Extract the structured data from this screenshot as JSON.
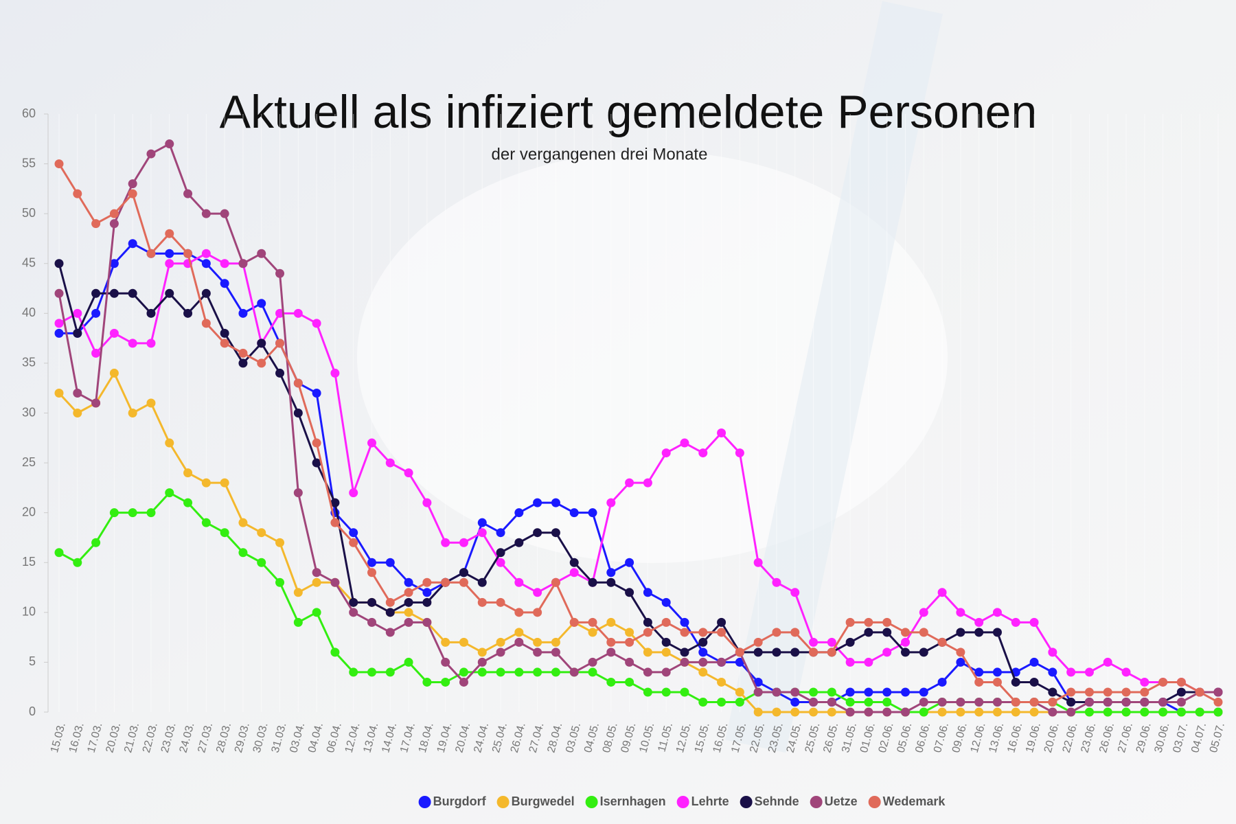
{
  "chart_data": {
    "type": "line",
    "title": "Aktuell als infiziert gemeldete Personen",
    "subtitle": "der vergangenen drei Monate",
    "categories": [
      "15.03.",
      "16.03.",
      "17.03.",
      "20.03.",
      "21.03.",
      "22.03.",
      "23.03.",
      "24.03.",
      "27.03.",
      "28.03.",
      "29.03.",
      "30.03.",
      "31.03.",
      "03.04.",
      "04.04.",
      "06.04.",
      "12.04.",
      "13.04.",
      "14.04.",
      "17.04.",
      "18.04.",
      "19.04.",
      "20.04.",
      "24.04.",
      "25.04.",
      "26.04.",
      "27.04.",
      "28.04.",
      "03.05.",
      "04.05.",
      "08.05.",
      "09.05.",
      "10.05.",
      "11.05.",
      "12.05.",
      "15.05.",
      "16.05.",
      "17.05.",
      "22.05.",
      "23.05.",
      "24.05.",
      "25.05.",
      "26.05.",
      "31.05.",
      "01.06.",
      "02.06.",
      "05.06.",
      "06.06.",
      "07.06.",
      "09.06.",
      "12.06.",
      "13.06.",
      "16.06.",
      "19.06.",
      "20.06.",
      "22.06.",
      "23.06.",
      "26.06.",
      "27.06.",
      "29.06.",
      "30.06.",
      "03.07.",
      "04.07.",
      "05.07."
    ],
    "series": [
      {
        "name": "Burgdorf",
        "color": "#1a1aff",
        "values": [
          38,
          38,
          40,
          45,
          47,
          46,
          46,
          46,
          45,
          43,
          40,
          41,
          37,
          33,
          32,
          20,
          18,
          15,
          15,
          13,
          12,
          13,
          14,
          19,
          18,
          20,
          21,
          21,
          20,
          20,
          14,
          15,
          12,
          11,
          9,
          6,
          5,
          5,
          3,
          2,
          1,
          1,
          1,
          2,
          2,
          2,
          2,
          2,
          3,
          5,
          4,
          4,
          4,
          5,
          4,
          1,
          1,
          1,
          1,
          1,
          1,
          0,
          0,
          0
        ]
      },
      {
        "name": "Burgwedel",
        "color": "#f4b82c",
        "values": [
          32,
          30,
          31,
          34,
          30,
          31,
          27,
          24,
          23,
          23,
          19,
          18,
          17,
          12,
          13,
          13,
          11,
          11,
          10,
          10,
          9,
          7,
          7,
          6,
          7,
          8,
          7,
          7,
          9,
          8,
          9,
          8,
          6,
          6,
          5,
          4,
          3,
          2,
          0,
          0,
          0,
          0,
          0,
          0,
          0,
          0,
          0,
          0,
          0,
          0,
          0,
          0,
          0,
          0,
          0,
          0,
          0,
          0,
          0,
          0,
          0,
          0,
          0,
          0
        ]
      },
      {
        "name": "Isernhagen",
        "color": "#33ee11",
        "values": [
          16,
          15,
          17,
          20,
          20,
          20,
          22,
          21,
          19,
          18,
          16,
          15,
          13,
          9,
          10,
          6,
          4,
          4,
          4,
          5,
          3,
          3,
          4,
          4,
          4,
          4,
          4,
          4,
          4,
          4,
          3,
          3,
          2,
          2,
          2,
          1,
          1,
          1,
          2,
          2,
          2,
          2,
          2,
          1,
          1,
          1,
          0,
          0,
          1,
          1,
          1,
          1,
          1,
          1,
          1,
          0,
          0,
          0,
          0,
          0,
          0,
          0,
          0,
          0
        ]
      },
      {
        "name": "Lehrte",
        "color": "#ff22ff",
        "values": [
          39,
          40,
          36,
          38,
          37,
          37,
          45,
          45,
          46,
          45,
          45,
          37,
          40,
          40,
          39,
          34,
          22,
          27,
          25,
          24,
          21,
          17,
          17,
          18,
          15,
          13,
          12,
          13,
          14,
          13,
          21,
          23,
          23,
          26,
          27,
          26,
          28,
          26,
          15,
          13,
          12,
          7,
          7,
          5,
          5,
          6,
          7,
          10,
          12,
          10,
          9,
          10,
          9,
          9,
          6,
          4,
          4,
          5,
          4,
          3,
          3,
          3,
          2,
          2
        ]
      },
      {
        "name": "Sehnde",
        "color": "#1a1048",
        "values": [
          45,
          38,
          42,
          42,
          42,
          40,
          42,
          40,
          42,
          38,
          35,
          37,
          34,
          30,
          25,
          21,
          11,
          11,
          10,
          11,
          11,
          13,
          14,
          13,
          16,
          17,
          18,
          18,
          15,
          13,
          13,
          12,
          9,
          7,
          6,
          7,
          9,
          6,
          6,
          6,
          6,
          6,
          6,
          7,
          8,
          8,
          6,
          6,
          7,
          8,
          8,
          8,
          3,
          3,
          2,
          1,
          1,
          1,
          1,
          1,
          1,
          2,
          2,
          2
        ]
      },
      {
        "name": "Uetze",
        "color": "#a0457a",
        "values": [
          42,
          32,
          31,
          49,
          53,
          56,
          57,
          52,
          50,
          50,
          45,
          46,
          44,
          22,
          14,
          13,
          10,
          9,
          8,
          9,
          9,
          5,
          3,
          5,
          6,
          7,
          6,
          6,
          4,
          5,
          6,
          5,
          4,
          4,
          5,
          5,
          5,
          6,
          2,
          2,
          2,
          1,
          1,
          0,
          0,
          0,
          0,
          1,
          1,
          1,
          1,
          1,
          1,
          1,
          0,
          0,
          1,
          1,
          1,
          1,
          1,
          1,
          2,
          2
        ]
      },
      {
        "name": "Wedemark",
        "color": "#e06a5a",
        "values": [
          55,
          52,
          49,
          50,
          52,
          46,
          48,
          46,
          39,
          37,
          36,
          35,
          37,
          33,
          27,
          19,
          17,
          14,
          11,
          12,
          13,
          13,
          13,
          11,
          11,
          10,
          10,
          13,
          9,
          9,
          7,
          7,
          8,
          9,
          8,
          8,
          8,
          6,
          7,
          8,
          8,
          6,
          6,
          9,
          9,
          9,
          8,
          8,
          7,
          6,
          3,
          3,
          1,
          1,
          1,
          2,
          2,
          2,
          2,
          2,
          3,
          3,
          2,
          1
        ]
      }
    ],
    "ylim": [
      0,
      60
    ],
    "yticks": [
      0,
      5,
      10,
      15,
      20,
      25,
      30,
      35,
      40,
      45,
      50,
      55,
      60
    ],
    "legend": "bottom"
  }
}
